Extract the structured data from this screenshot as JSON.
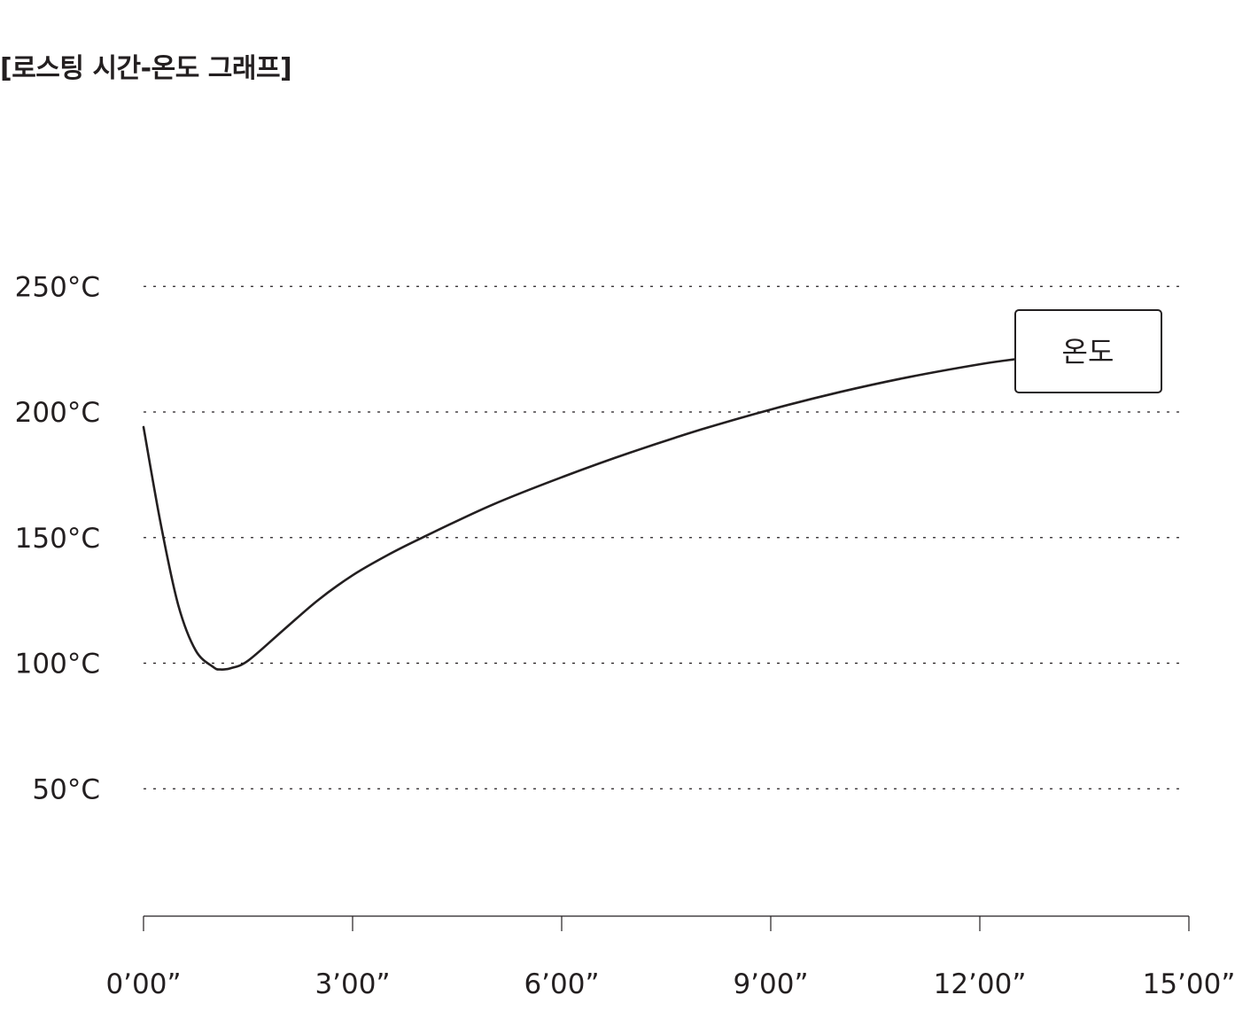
{
  "chart_data": {
    "type": "line",
    "title": "[로스팅 시간-온도 그래프]",
    "xlabel": "",
    "ylabel": "",
    "x_tick_labels": [
      "0’00”",
      "3’00”",
      "6’00”",
      "9’00”",
      "12’00”",
      "15’00”"
    ],
    "x_tick_values": [
      0,
      3,
      6,
      9,
      12,
      15
    ],
    "y_tick_labels": [
      "250°C",
      "200°C",
      "150°C",
      "100°C",
      "50°C"
    ],
    "y_tick_values": [
      250,
      200,
      150,
      100,
      50
    ],
    "xlim": [
      0,
      15
    ],
    "ylim": [
      0,
      250
    ],
    "grid": "horizontal-dotted",
    "series": [
      {
        "name": "온도",
        "x": [
          0,
          0.25,
          0.5,
          0.75,
          1.0,
          1.1,
          1.25,
          1.5,
          2.0,
          2.5,
          3.0,
          3.5,
          4.0,
          5.0,
          6.0,
          7.0,
          8.0,
          9.0,
          10.0,
          11.0,
          12.0,
          12.5
        ],
        "y": [
          194,
          155,
          123,
          105,
          98.5,
          97.5,
          98,
          101,
          113,
          125,
          135,
          143,
          150,
          163,
          174,
          184,
          193,
          201,
          208,
          214,
          219,
          221
        ]
      }
    ],
    "label_box": "온도",
    "colors": {
      "line": "#231f20",
      "grid": "#231f20",
      "text": "#231f20",
      "background": "#ffffff"
    }
  }
}
